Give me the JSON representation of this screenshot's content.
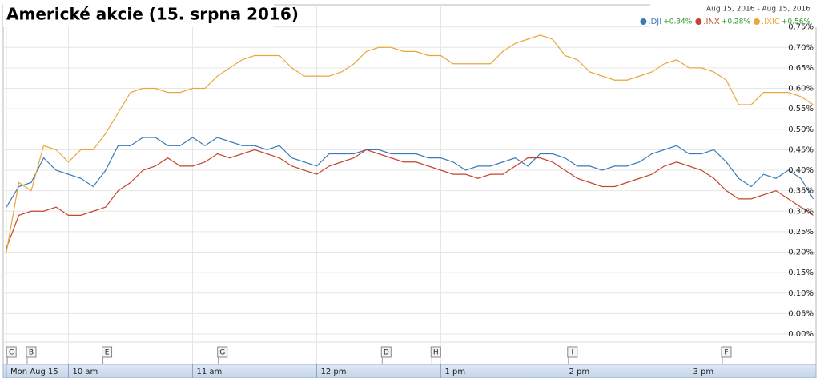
{
  "chart_data": {
    "type": "line",
    "title": "Americké akcie (15. srpna 2016)",
    "subtitle": "Aug 15, 2016 - Aug 15, 2016",
    "x": [
      9.5,
      9.6,
      9.7,
      9.8,
      9.9,
      10.0,
      10.1,
      10.2,
      10.3,
      10.4,
      10.5,
      10.6,
      10.7,
      10.8,
      10.9,
      11.0,
      11.1,
      11.2,
      11.3,
      11.4,
      11.5,
      11.6,
      11.7,
      11.8,
      11.9,
      12.0,
      12.1,
      12.2,
      12.3,
      12.4,
      12.5,
      12.6,
      12.7,
      12.8,
      12.9,
      13.0,
      13.1,
      13.2,
      13.3,
      13.4,
      13.5,
      13.6,
      13.7,
      13.8,
      13.9,
      14.0,
      14.1,
      14.2,
      14.3,
      14.4,
      14.5,
      14.6,
      14.7,
      14.8,
      14.9,
      15.0,
      15.1,
      15.2,
      15.3,
      15.4,
      15.5,
      15.6,
      15.7,
      15.8,
      15.9,
      16.0
    ],
    "xlim": [
      9.5,
      16.0
    ],
    "xticks": [
      {
        "value": 9.5,
        "label": "Mon Aug 15"
      },
      {
        "value": 10,
        "label": "10 am"
      },
      {
        "value": 11,
        "label": "11 am"
      },
      {
        "value": 12,
        "label": "12 pm"
      },
      {
        "value": 13,
        "label": "1 pm"
      },
      {
        "value": 14,
        "label": "2 pm"
      },
      {
        "value": 15,
        "label": "3 pm"
      }
    ],
    "ylim": [
      0,
      0.8
    ],
    "yticks": [
      {
        "value": 0,
        "label": "0.00%"
      },
      {
        "value": 0.05,
        "label": "0.05%"
      },
      {
        "value": 0.1,
        "label": "0.10%"
      },
      {
        "value": 0.15,
        "label": "0.15%"
      },
      {
        "value": 0.2,
        "label": "0.20%"
      },
      {
        "value": 0.25,
        "label": "0.25%"
      },
      {
        "value": 0.3,
        "label": "0.30%"
      },
      {
        "value": 0.35,
        "label": "0.35%"
      },
      {
        "value": 0.4,
        "label": "0.40%"
      },
      {
        "value": 0.45,
        "label": "0.45%"
      },
      {
        "value": 0.5,
        "label": "0.50%"
      },
      {
        "value": 0.55,
        "label": "0.55%"
      },
      {
        "value": 0.6,
        "label": "0.60%"
      },
      {
        "value": 0.65,
        "label": "0.65%"
      },
      {
        "value": 0.7,
        "label": "0.70%"
      },
      {
        "value": 0.75,
        "label": "0.75%"
      }
    ],
    "grid": true,
    "legend": "top-right",
    "series": [
      {
        "name": ".DJI",
        "change": "+0.34%",
        "color": "#3a7ab8",
        "values": [
          0.31,
          0.36,
          0.37,
          0.43,
          0.4,
          0.39,
          0.38,
          0.36,
          0.4,
          0.46,
          0.46,
          0.48,
          0.48,
          0.46,
          0.46,
          0.48,
          0.46,
          0.48,
          0.47,
          0.46,
          0.46,
          0.45,
          0.46,
          0.43,
          0.42,
          0.41,
          0.44,
          0.44,
          0.44,
          0.45,
          0.45,
          0.44,
          0.44,
          0.44,
          0.43,
          0.43,
          0.42,
          0.4,
          0.41,
          0.41,
          0.42,
          0.43,
          0.41,
          0.44,
          0.44,
          0.43,
          0.41,
          0.41,
          0.4,
          0.41,
          0.41,
          0.42,
          0.44,
          0.45,
          0.46,
          0.44,
          0.44,
          0.45,
          0.42,
          0.38,
          0.36,
          0.39,
          0.38,
          0.4,
          0.38,
          0.33
        ]
      },
      {
        "name": ".INX",
        "change": "+0.28%",
        "color": "#c4452e",
        "values": [
          0.21,
          0.29,
          0.3,
          0.3,
          0.31,
          0.29,
          0.29,
          0.3,
          0.31,
          0.35,
          0.37,
          0.4,
          0.41,
          0.43,
          0.41,
          0.41,
          0.42,
          0.44,
          0.43,
          0.44,
          0.45,
          0.44,
          0.43,
          0.41,
          0.4,
          0.39,
          0.41,
          0.42,
          0.43,
          0.45,
          0.44,
          0.43,
          0.42,
          0.42,
          0.41,
          0.4,
          0.39,
          0.39,
          0.38,
          0.39,
          0.39,
          0.41,
          0.43,
          0.43,
          0.42,
          0.4,
          0.38,
          0.37,
          0.36,
          0.36,
          0.37,
          0.38,
          0.39,
          0.41,
          0.42,
          0.41,
          0.4,
          0.38,
          0.35,
          0.33,
          0.33,
          0.34,
          0.35,
          0.33,
          0.31,
          0.29
        ]
      },
      {
        "name": ".IXIC",
        "change": "+0.56%",
        "color": "#e8a73a",
        "values": [
          0.2,
          0.37,
          0.35,
          0.46,
          0.45,
          0.42,
          0.45,
          0.45,
          0.49,
          0.54,
          0.59,
          0.6,
          0.6,
          0.59,
          0.59,
          0.6,
          0.6,
          0.63,
          0.65,
          0.67,
          0.68,
          0.68,
          0.68,
          0.65,
          0.63,
          0.63,
          0.63,
          0.64,
          0.66,
          0.69,
          0.7,
          0.7,
          0.69,
          0.69,
          0.68,
          0.68,
          0.66,
          0.66,
          0.66,
          0.66,
          0.69,
          0.71,
          0.72,
          0.73,
          0.72,
          0.68,
          0.67,
          0.64,
          0.63,
          0.62,
          0.62,
          0.63,
          0.64,
          0.66,
          0.67,
          0.65,
          0.65,
          0.64,
          0.62,
          0.56,
          0.56,
          0.59,
          0.59,
          0.59,
          0.58,
          0.56
        ]
      }
    ],
    "flags": [
      {
        "label": "C",
        "x": 9.54
      },
      {
        "label": "B",
        "x": 9.7
      },
      {
        "label": "E",
        "x": 10.31
      },
      {
        "label": "G",
        "x": 11.24
      },
      {
        "label": "D",
        "x": 12.56
      },
      {
        "label": "H",
        "x": 12.96
      },
      {
        "label": "I",
        "x": 14.06
      },
      {
        "label": "F",
        "x": 15.3
      }
    ]
  }
}
